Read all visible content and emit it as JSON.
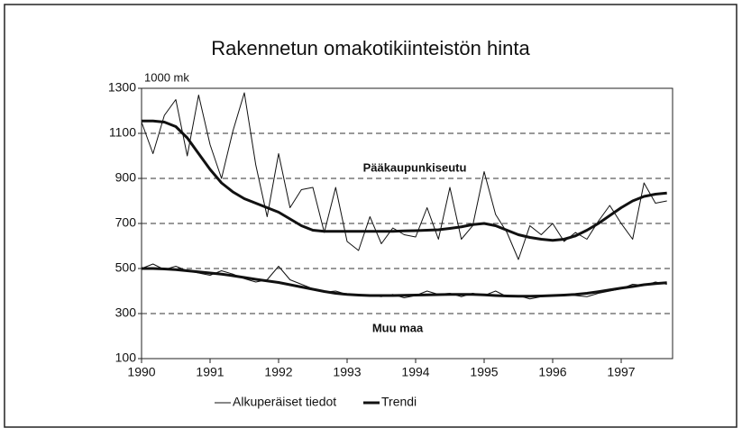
{
  "chart_data": {
    "type": "line",
    "title": "Rakennetun omakotikiinteistön hinta",
    "y_label": "1000 mk",
    "x": [
      1990,
      1990.167,
      1990.333,
      1990.5,
      1990.667,
      1990.833,
      1991,
      1991.167,
      1991.333,
      1991.5,
      1991.667,
      1991.833,
      1992,
      1992.167,
      1992.333,
      1992.5,
      1992.667,
      1992.833,
      1993,
      1993.167,
      1993.333,
      1993.5,
      1993.667,
      1993.833,
      1994,
      1994.167,
      1994.333,
      1994.5,
      1994.667,
      1994.833,
      1995,
      1995.167,
      1995.333,
      1995.5,
      1995.667,
      1995.833,
      1996,
      1996.167,
      1996.333,
      1996.5,
      1996.667,
      1996.833,
      1997,
      1997.167,
      1997.333,
      1997.5,
      1997.667
    ],
    "xlim": [
      1990,
      1997.75
    ],
    "xticks": [
      1990,
      1991,
      1992,
      1993,
      1994,
      1995,
      1996,
      1997
    ],
    "ylim": [
      100,
      1300
    ],
    "yticks": [
      100,
      300,
      500,
      700,
      900,
      1100,
      1300
    ],
    "grid": true,
    "color": "#111111",
    "legend": [
      {
        "name": "Alkuperäiset tiedot",
        "width": 1
      },
      {
        "name": "Trendi",
        "width": 3
      }
    ],
    "series": [
      {
        "name": "Pääkaupunkiseutu",
        "values": [
          1150,
          1010,
          1180,
          1250,
          1000,
          1270,
          1050,
          900,
          1110,
          1280,
          960,
          730,
          1010,
          770,
          850,
          860,
          660,
          860,
          620,
          580,
          730,
          610,
          680,
          650,
          640,
          770,
          630,
          860,
          630,
          690,
          930,
          740,
          660,
          540,
          690,
          650,
          700,
          620,
          660,
          630,
          710,
          780,
          700,
          630,
          880,
          790,
          800
        ],
        "trend": [
          1155,
          1155,
          1150,
          1130,
          1080,
          1010,
          940,
          880,
          840,
          810,
          790,
          770,
          750,
          720,
          690,
          670,
          665,
          665,
          665,
          665,
          665,
          665,
          665,
          667,
          668,
          670,
          672,
          678,
          685,
          695,
          700,
          690,
          670,
          650,
          638,
          630,
          625,
          630,
          645,
          670,
          700,
          735,
          770,
          800,
          820,
          830,
          835
        ]
      },
      {
        "name": "Muu maa",
        "values": [
          500,
          520,
          495,
          510,
          490,
          480,
          470,
          490,
          475,
          455,
          440,
          450,
          510,
          450,
          430,
          410,
          395,
          400,
          385,
          385,
          380,
          375,
          385,
          370,
          380,
          400,
          385,
          390,
          375,
          390,
          380,
          400,
          375,
          380,
          365,
          375,
          380,
          385,
          380,
          375,
          390,
          400,
          410,
          430,
          425,
          440,
          430
        ],
        "trend": [
          500,
          500,
          498,
          495,
          490,
          485,
          480,
          475,
          468,
          460,
          452,
          445,
          438,
          428,
          418,
          408,
          398,
          390,
          385,
          382,
          380,
          380,
          380,
          381,
          382,
          383,
          384,
          385,
          385,
          385,
          383,
          380,
          378,
          377,
          377,
          378,
          380,
          382,
          385,
          390,
          397,
          405,
          413,
          420,
          428,
          433,
          437
        ]
      }
    ]
  }
}
